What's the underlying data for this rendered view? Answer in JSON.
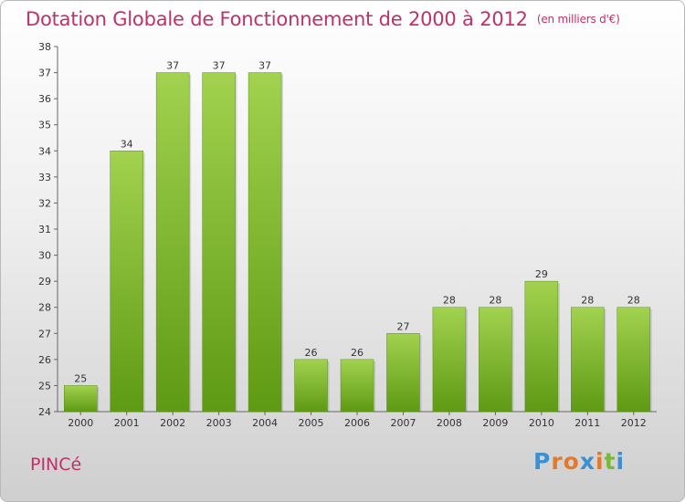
{
  "header": {
    "title": "Dotation Globale de Fonctionnement de 2000 à 2012",
    "unit": "(en milliers d'€)"
  },
  "commune": "PINCé",
  "logo": {
    "text": "Proxiti",
    "letter_colors": [
      "#3c8fd1",
      "#e3792c",
      "#e3792c",
      "#3c8fd1",
      "#e3792c",
      "#7bb83a",
      "#3c8fd1"
    ]
  },
  "colors": {
    "bar_top": "#a2d24f",
    "bar_bottom": "#5e9a14",
    "title": "#c0306a"
  },
  "chart_data": {
    "type": "bar",
    "categories": [
      "2000",
      "2001",
      "2002",
      "2003",
      "2004",
      "2005",
      "2006",
      "2007",
      "2008",
      "2009",
      "2010",
      "2011",
      "2012"
    ],
    "values": [
      25,
      34,
      37,
      37,
      37,
      26,
      26,
      27,
      28,
      28,
      29,
      28,
      28
    ],
    "data_labels": [
      "25",
      "34",
      "37",
      "37",
      "37",
      "26",
      "26",
      "27",
      "28",
      "28",
      "29",
      "28",
      "28"
    ],
    "ylim": [
      24,
      38
    ],
    "yticks": [
      "24",
      "25",
      "26",
      "27",
      "28",
      "29",
      "30",
      "31",
      "32",
      "33",
      "34",
      "35",
      "36",
      "37",
      "38"
    ],
    "grid": false,
    "title": "Dotation Globale de Fonctionnement de 2000 à 2012",
    "xlabel": "",
    "ylabel": ""
  }
}
